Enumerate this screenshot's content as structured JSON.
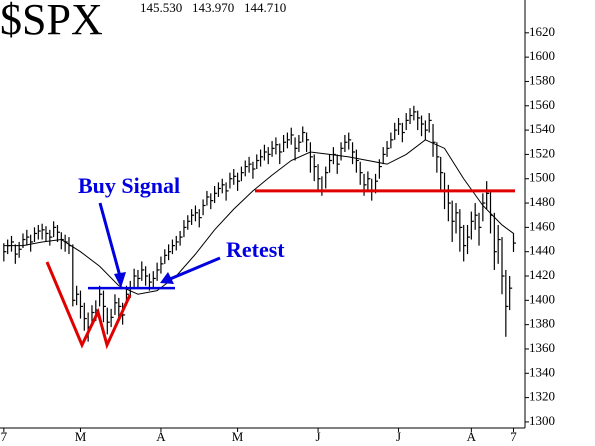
{
  "chart_data": {
    "type": "hlc",
    "title": "$SPX",
    "header_values": [
      "145.530",
      "143.970",
      "144.710"
    ],
    "color": "#000000",
    "high": [
      1447,
      1450,
      1453,
      1446,
      1448,
      1455,
      1458,
      1454,
      1460,
      1462,
      1463,
      1461,
      1458,
      1465,
      1462,
      1456,
      1454,
      1452,
      1446,
      1412,
      1408,
      1398,
      1390,
      1396,
      1400,
      1412,
      1408,
      1394,
      1393,
      1405,
      1402,
      1398,
      1412,
      1416,
      1426,
      1425,
      1432,
      1428,
      1422,
      1424,
      1431,
      1436,
      1442,
      1446,
      1450,
      1453,
      1457,
      1466,
      1470,
      1475,
      1478,
      1475,
      1483,
      1490,
      1488,
      1494,
      1497,
      1500,
      1497,
      1505,
      1508,
      1505,
      1510,
      1515,
      1518,
      1514,
      1520,
      1524,
      1528,
      1526,
      1531,
      1534,
      1529,
      1536,
      1538,
      1542,
      1534,
      1536,
      1543,
      1538,
      1530,
      1520,
      1512,
      1502,
      1510,
      1520,
      1526,
      1520,
      1530,
      1536,
      1538,
      1530,
      1524,
      1514,
      1504,
      1506,
      1500,
      1504,
      1516,
      1526,
      1531,
      1538,
      1546,
      1550,
      1546,
      1554,
      1558,
      1560,
      1556,
      1552,
      1548,
      1554,
      1545,
      1530,
      1518,
      1505,
      1495,
      1482,
      1480,
      1475,
      1462,
      1462,
      1473,
      1480,
      1472,
      1488,
      1498,
      1490,
      1472,
      1462,
      1452,
      1425,
      1420,
      1455.3
    ],
    "low": [
      1432,
      1438,
      1440,
      1430,
      1435,
      1443,
      1445,
      1440,
      1448,
      1450,
      1450,
      1448,
      1445,
      1452,
      1448,
      1442,
      1440,
      1438,
      1395,
      1396,
      1385,
      1375,
      1366,
      1380,
      1383,
      1395,
      1382,
      1372,
      1378,
      1388,
      1385,
      1380,
      1396,
      1402,
      1410,
      1410,
      1416,
      1412,
      1408,
      1410,
      1416,
      1422,
      1430,
      1433,
      1438,
      1441,
      1445,
      1452,
      1458,
      1462,
      1465,
      1460,
      1470,
      1478,
      1475,
      1480,
      1485,
      1488,
      1482,
      1492,
      1495,
      1490,
      1498,
      1502,
      1505,
      1500,
      1508,
      1510,
      1515,
      1512,
      1518,
      1520,
      1512,
      1522,
      1525,
      1528,
      1515,
      1522,
      1530,
      1522,
      1505,
      1498,
      1490,
      1486,
      1492,
      1505,
      1512,
      1504,
      1515,
      1522,
      1524,
      1512,
      1505,
      1495,
      1486,
      1490,
      1482,
      1488,
      1500,
      1512,
      1518,
      1525,
      1532,
      1536,
      1530,
      1540,
      1545,
      1548,
      1540,
      1535,
      1532,
      1538,
      1518,
      1505,
      1490,
      1475,
      1465,
      1448,
      1455,
      1440,
      1432,
      1438,
      1450,
      1458,
      1445,
      1465,
      1475,
      1455,
      1425,
      1430,
      1405,
      1370,
      1392,
      1439.7
    ],
    "close": [
      1440,
      1445,
      1448,
      1438,
      1442,
      1450,
      1452,
      1448,
      1455,
      1457,
      1458,
      1455,
      1452,
      1460,
      1456,
      1450,
      1448,
      1445,
      1400,
      1405,
      1395,
      1385,
      1378,
      1390,
      1392,
      1405,
      1395,
      1382,
      1386,
      1398,
      1395,
      1388,
      1405,
      1410,
      1420,
      1418,
      1425,
      1420,
      1415,
      1418,
      1425,
      1430,
      1437,
      1440,
      1445,
      1448,
      1452,
      1460,
      1465,
      1470,
      1472,
      1468,
      1478,
      1485,
      1482,
      1488,
      1492,
      1495,
      1490,
      1500,
      1502,
      1498,
      1505,
      1510,
      1512,
      1508,
      1515,
      1518,
      1522,
      1520,
      1525,
      1528,
      1522,
      1530,
      1532,
      1536,
      1525,
      1530,
      1538,
      1532,
      1518,
      1510,
      1500,
      1490,
      1505,
      1515,
      1520,
      1512,
      1525,
      1530,
      1532,
      1522,
      1515,
      1505,
      1495,
      1500,
      1490,
      1498,
      1510,
      1520,
      1525,
      1532,
      1540,
      1545,
      1538,
      1548,
      1552,
      1555,
      1550,
      1545,
      1540,
      1548,
      1530,
      1518,
      1505,
      1490,
      1480,
      1465,
      1472,
      1460,
      1445,
      1452,
      1465,
      1470,
      1460,
      1480,
      1488,
      1470,
      1440,
      1450,
      1420,
      1395,
      1410,
      1447.1
    ],
    "moving_average": {
      "x": [
        0,
        5,
        10,
        15,
        20,
        25,
        30,
        35,
        40,
        45,
        50,
        55,
        60,
        65,
        70,
        75,
        80,
        85,
        90,
        95,
        100,
        105,
        110,
        115,
        120,
        125,
        130,
        133
      ],
      "values": [
        1445,
        1445,
        1448,
        1450,
        1440,
        1428,
        1412,
        1405,
        1408,
        1420,
        1438,
        1458,
        1475,
        1490,
        1503,
        1515,
        1522,
        1520,
        1518,
        1515,
        1512,
        1520,
        1532,
        1525,
        1500,
        1478,
        1462,
        1455
      ]
    },
    "xlim": [
      -1,
      136
    ],
    "xticks": [
      {
        "value": 0,
        "label": "7"
      },
      {
        "value": 20,
        "label": "M"
      },
      {
        "value": 41,
        "label": "A"
      },
      {
        "value": 61,
        "label": "M"
      },
      {
        "value": 82,
        "label": "J"
      },
      {
        "value": 103,
        "label": "J"
      },
      {
        "value": 122,
        "label": "A"
      },
      {
        "value": 133,
        "label": "7"
      }
    ],
    "ylim": [
      1295,
      1647
    ],
    "yticks": [
      1300,
      1320,
      1340,
      1360,
      1380,
      1400,
      1420,
      1440,
      1460,
      1480,
      1500,
      1520,
      1540,
      1560,
      1580,
      1600,
      1620
    ],
    "annotations": {
      "buy_signal": "Buy Signal",
      "retest": "Retest",
      "support_level": 1410,
      "resistance_level": 1490
    }
  }
}
